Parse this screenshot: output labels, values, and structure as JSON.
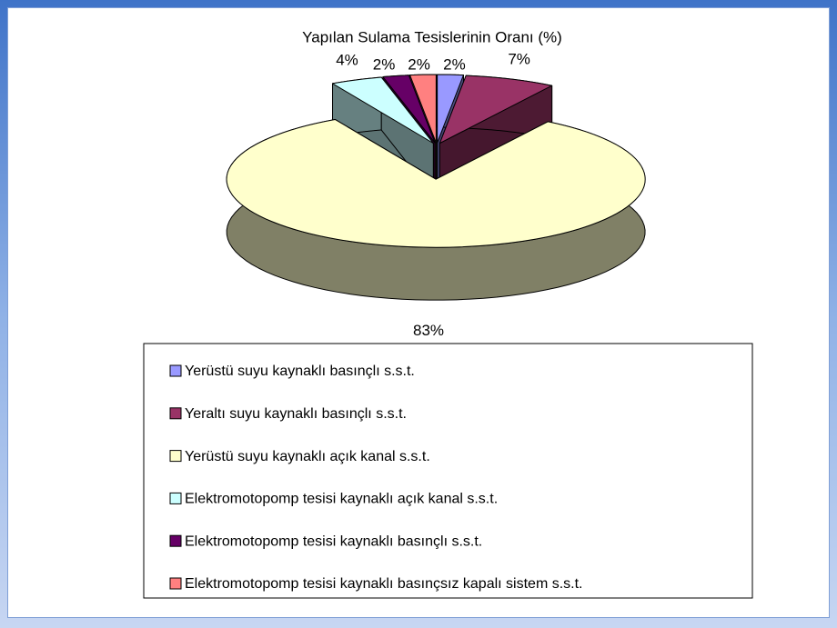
{
  "chart_data": {
    "type": "pie3d",
    "title": "Yapılan Sulama Tesislerinin Oranı (%)",
    "categories": [
      "Yerüstü suyu kaynaklı basınçlı s.s.t.",
      "Yeraltı suyu kaynaklı basınçlı s.s.t.",
      "Yerüstü suyu kaynaklı açık kanal s.s.t.",
      "Elektromotopomp tesisi kaynaklı açık kanal s.s.t.",
      "Elektromotopomp tesisi kaynaklı basınçlı s.s.t.",
      "Elektromotopomp tesisi kaynaklı basınçsız kapalı sistem s.s.t."
    ],
    "values": [
      2,
      7,
      83,
      4,
      2,
      2
    ],
    "value_labels": [
      "2%",
      "7%",
      "83%",
      "4%",
      "2%",
      "2%"
    ],
    "colors": [
      "#9999ff",
      "#993366",
      "#ffffcc",
      "#ccffff",
      "#660066",
      "#ff8080"
    ],
    "legend": "bottom"
  }
}
